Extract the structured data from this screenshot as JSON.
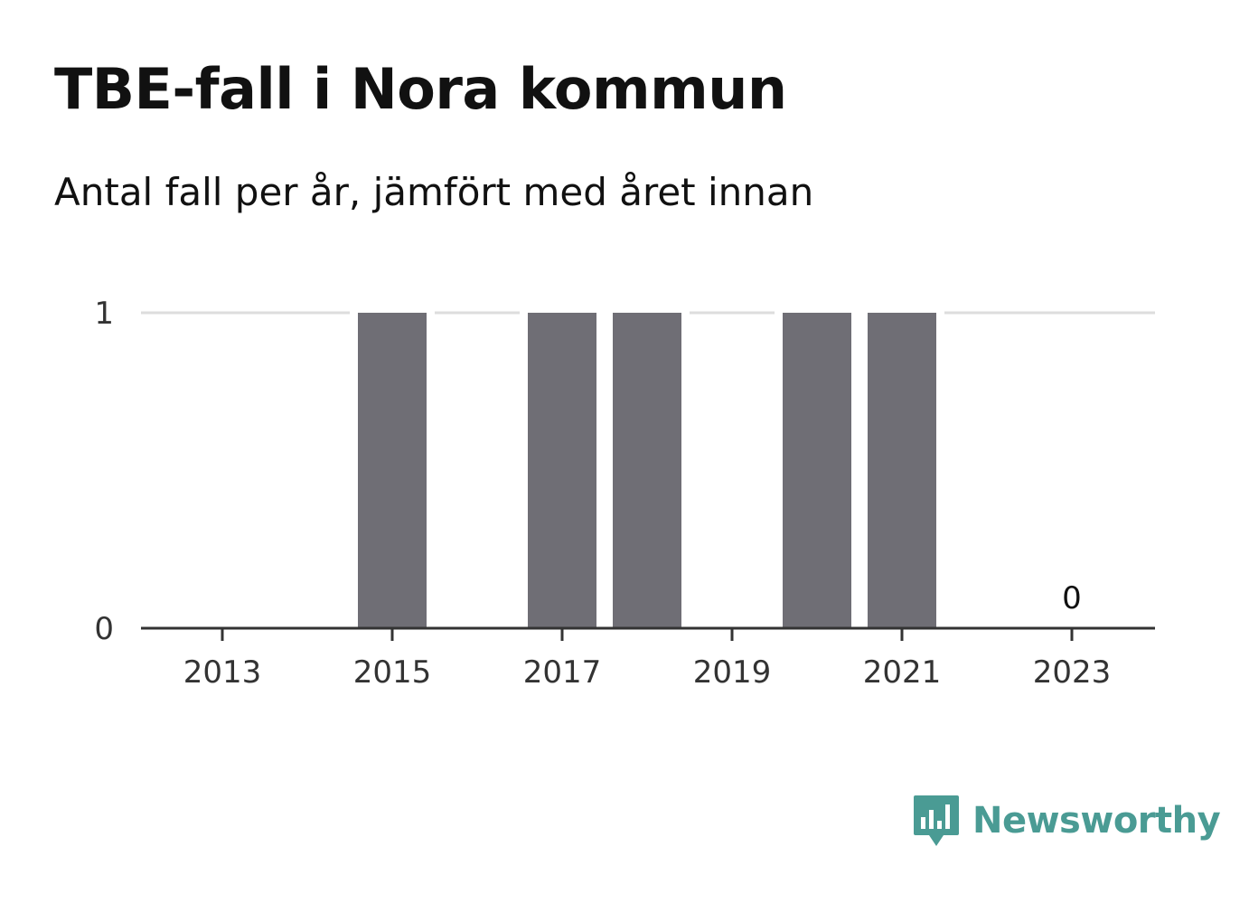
{
  "title": "TBE-fall i Nora kommun",
  "subtitle": "Antal fall per år, jämfört med året innan",
  "brand": {
    "name": "Newsworthy",
    "icon": "newsworthy-logo-icon",
    "color": "#4a9b94"
  },
  "chart_data": {
    "type": "bar",
    "x": [
      2013,
      2014,
      2015,
      2016,
      2017,
      2018,
      2019,
      2020,
      2021,
      2022,
      2023
    ],
    "values": [
      0,
      0,
      1,
      0,
      1,
      1,
      0,
      1,
      1,
      0,
      0
    ],
    "x_tick_labels": [
      "2013",
      "2015",
      "2017",
      "2019",
      "2021",
      "2023"
    ],
    "y_tick_labels": [
      "0",
      "1"
    ],
    "ylim": [
      0,
      1
    ],
    "annotations": [
      {
        "x": 2023,
        "text": "0"
      }
    ],
    "bar_color": "#6f6e75",
    "grid": true,
    "legend": "none"
  }
}
